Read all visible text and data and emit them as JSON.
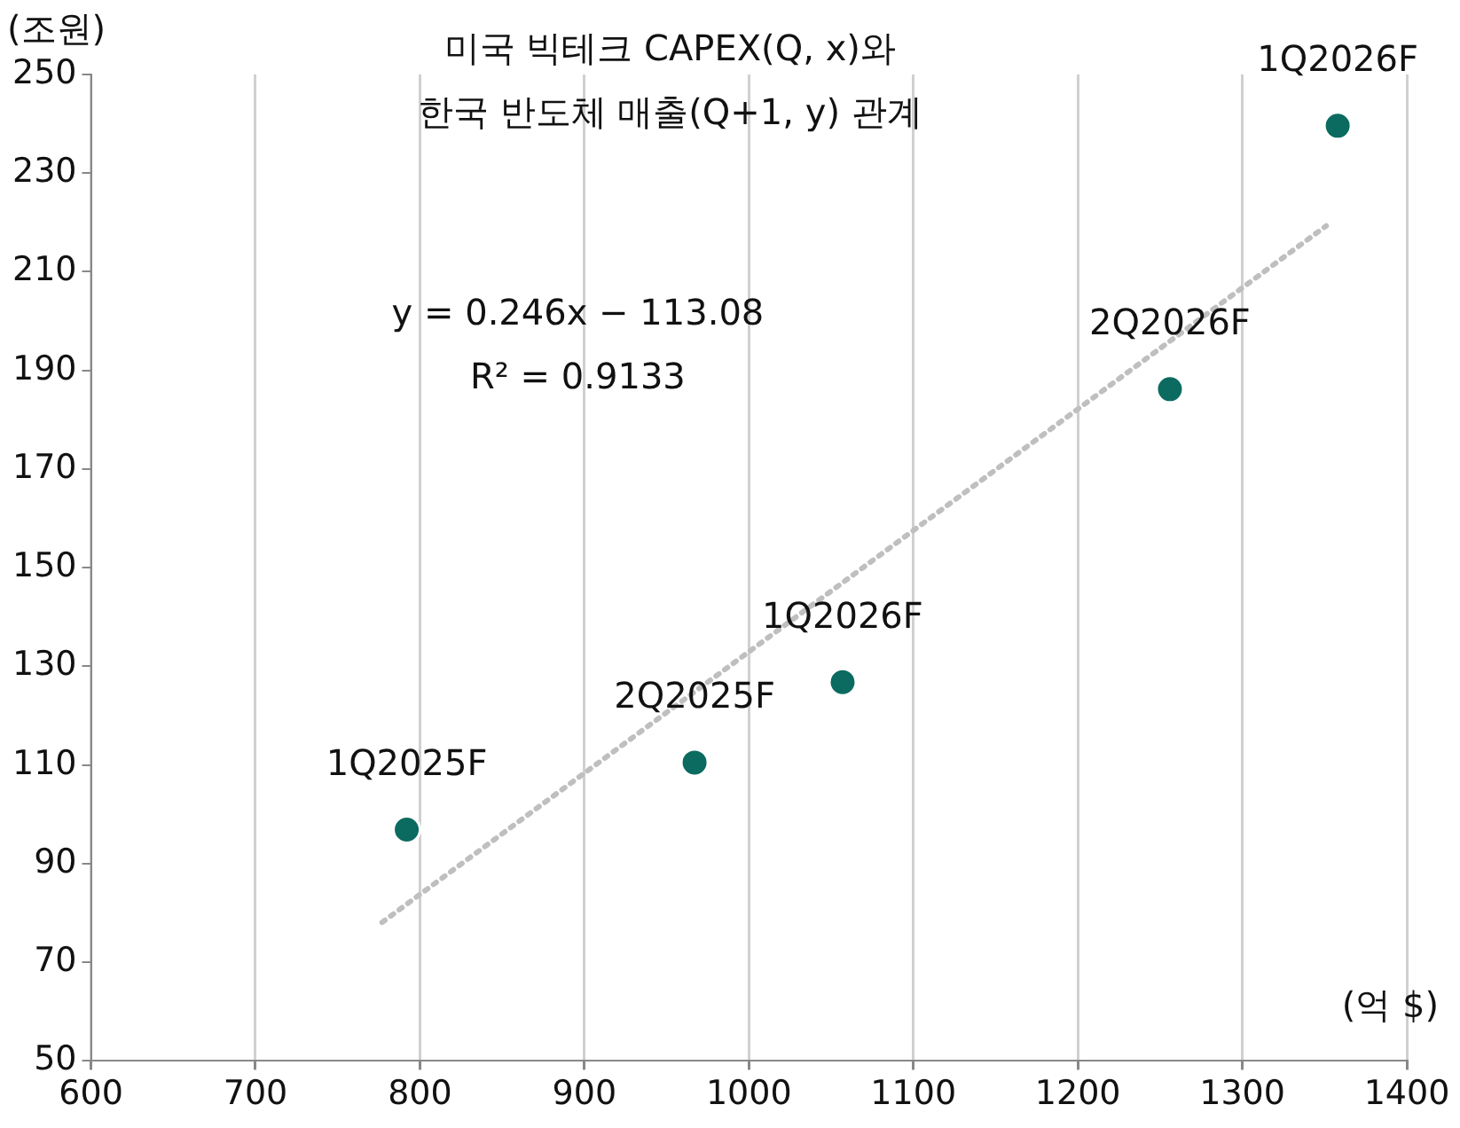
{
  "chart_data": {
    "type": "scatter",
    "title": "미국 빅테크 CAPEX(Q, x)와\n한국 반도체 매출(Q+1, y) 관계",
    "xlabel": "(억 $)",
    "ylabel": "(조원)",
    "series": [
      {
        "type": "scatter",
        "color": "#0b6b60",
        "x": [
          792,
          967,
          1057,
          1256,
          1358
        ],
        "values": [
          96.9,
          110.5,
          126.8,
          186.2,
          239.6
        ]
      },
      {
        "type": "line",
        "color": "#bfbfbf",
        "line_style": "dotted",
        "marker": "none",
        "x": [
          777,
          1351
        ],
        "values": [
          78.1,
          219.3
        ]
      }
    ],
    "annotations": [
      {
        "text": "1Q2025F",
        "x": 792,
        "y": 96.9
      },
      {
        "text": "2Q2025F",
        "x": 967,
        "y": 110.5
      },
      {
        "text": "1Q2026F",
        "x": 1057,
        "y": 126.8
      },
      {
        "text": "2Q2026F",
        "x": 1256,
        "y": 186.2
      },
      {
        "text": "1Q2026F",
        "x": 1358,
        "y": 239.6
      },
      "y = 0.246x − 113.08",
      "R² = 0.9133"
    ],
    "xlim": [
      600,
      1400
    ],
    "xticks": [
      600,
      700,
      800,
      900,
      1000,
      1100,
      1200,
      1300,
      1400
    ],
    "ylim": [
      50,
      250
    ],
    "yticks": [
      50,
      70,
      90,
      110,
      130,
      150,
      170,
      190,
      210,
      230,
      250
    ],
    "grid": "x",
    "marker": "circle",
    "legend": false
  }
}
